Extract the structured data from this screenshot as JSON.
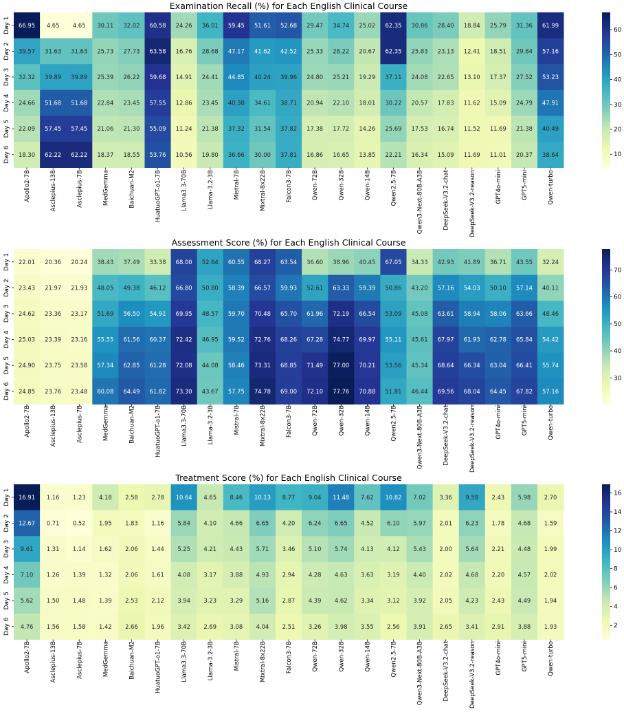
{
  "chart_data": [
    {
      "type": "heatmap",
      "title": "Examination Recall (%) for Each English Clinical Course",
      "colormap": "YlGnBu",
      "y_categories": [
        "Day 1",
        "Day 2",
        "Day 3",
        "Day 4",
        "Day 5",
        "Day 6"
      ],
      "x_categories": [
        "Apollo2-7B",
        "Asclepius-13B",
        "Asclepius-7B",
        "MedGemma",
        "Baichuan-M2",
        "HuatuoGPT-o1-7B",
        "Llama3.3-70B",
        "Llama-3.2-3B",
        "Mistral-7B",
        "Mixtral-8x22B",
        "Falcon3-7B",
        "Qwen-72B",
        "Qwen-32B",
        "Qwen-14B",
        "Qwen2.5-7B",
        "Qwen3-Next-80B-A3B",
        "DeepSeek-V3.2-chat",
        "DeepSeek-V3.2-reason",
        "GPT4o-mini",
        "GPT5-mini",
        "Qwen-turbo"
      ],
      "values": [
        [
          "66.95",
          "4.65",
          "4.65",
          "30.11",
          "32.02",
          "60.58",
          "24.26",
          "36.01",
          "59.45",
          "51.61",
          "52.68",
          "29.47",
          "34.74",
          "25.02",
          "62.35",
          "30.86",
          "28.40",
          "18.84",
          "25.79",
          "31.36",
          "61.99"
        ],
        [
          "39.57",
          "31.63",
          "31.63",
          "25.73",
          "27.73",
          "63.58",
          "16.76",
          "28.68",
          "47.17",
          "41.62",
          "42.52",
          "25.33",
          "28.22",
          "20.67",
          "62.35",
          "25.83",
          "23.13",
          "12.41",
          "18.51",
          "29.84",
          "57.16"
        ],
        [
          "32.32",
          "39.89",
          "39.89",
          "25.39",
          "26.22",
          "59.68",
          "14.91",
          "24.41",
          "44.85",
          "40.24",
          "39.96",
          "24.80",
          "25.21",
          "19.29",
          "37.11",
          "24.08",
          "22.65",
          "13.10",
          "17.37",
          "27.52",
          "53.23"
        ],
        [
          "24.66",
          "51.68",
          "51.68",
          "22.84",
          "23.45",
          "57.55",
          "12.86",
          "23.45",
          "40.38",
          "34.61",
          "38.71",
          "20.94",
          "22.10",
          "18.01",
          "30.22",
          "20.57",
          "17.83",
          "11.62",
          "15.09",
          "24.79",
          "47.91"
        ],
        [
          "22.09",
          "57.45",
          "57.45",
          "21.06",
          "21.30",
          "55.09",
          "11.24",
          "21.38",
          "37.32",
          "31.54",
          "37.82",
          "17.38",
          "17.72",
          "14.26",
          "25.69",
          "17.53",
          "16.74",
          "11.52",
          "11.69",
          "21.38",
          "40.49"
        ],
        [
          "18.30",
          "62.22",
          "62.22",
          "18.37",
          "18.55",
          "53.76",
          "10.56",
          "19.80",
          "36.66",
          "30.00",
          "37.81",
          "16.86",
          "16.65",
          "13.85",
          "22.21",
          "16.34",
          "15.09",
          "11.69",
          "11.01",
          "20.37",
          "38.64"
        ]
      ],
      "vmin": 4.65,
      "vmax": 66.95,
      "colorbar_ticks": [
        "10",
        "20",
        "30",
        "40",
        "50",
        "60"
      ]
    },
    {
      "type": "heatmap",
      "title": "Assessment Score (%) for Each English Clinical Course",
      "colormap": "YlGnBu",
      "y_categories": [
        "Day 1",
        "Day 2",
        "Day 3",
        "Day 4",
        "Day 5",
        "Day 6"
      ],
      "x_categories": [
        "Apollo2-7B",
        "Asclepius-13B",
        "Asclepius-7B",
        "MedGemma",
        "Baichuan-M2",
        "HuatuoGPT-o1-7B",
        "Llama3.3-70B",
        "Llama-3.2-3B",
        "Mistral-7B",
        "Mixtral-8x22B",
        "Falcon3-7B",
        "Qwen-72B",
        "Qwen-32B",
        "Qwen-14B",
        "Qwen2.5-7B",
        "Qwen3-Next-80B-A3B",
        "DeepSeek-V3.2-chat",
        "DeepSeek-V3.2-reason",
        "GPT4o-mini",
        "GPT5-mini",
        "Qwen-turbo"
      ],
      "values": [
        [
          "22.01",
          "20.36",
          "20.24",
          "38.43",
          "37.49",
          "33.38",
          "68.00",
          "52.64",
          "60.55",
          "68.27",
          "63.54",
          "36.60",
          "38.96",
          "40.45",
          "67.05",
          "34.33",
          "42.93",
          "41.89",
          "36.71",
          "43.55",
          "32.24"
        ],
        [
          "23.43",
          "21.97",
          "21.93",
          "48.05",
          "49.38",
          "46.12",
          "66.80",
          "50.80",
          "58.39",
          "66.57",
          "59.93",
          "52.61",
          "63.33",
          "59.39",
          "50.86",
          "43.20",
          "57.16",
          "54.03",
          "50.10",
          "57.14",
          "40.11"
        ],
        [
          "24.62",
          "23.36",
          "23.17",
          "51.69",
          "56.50",
          "54.91",
          "69.95",
          "48.57",
          "59.70",
          "70.48",
          "65.70",
          "61.96",
          "72.19",
          "66.54",
          "53.09",
          "45.08",
          "63.61",
          "58.94",
          "58.06",
          "63.66",
          "48.46"
        ],
        [
          "25.03",
          "23.39",
          "23.16",
          "55.55",
          "61.56",
          "60.37",
          "72.42",
          "46.95",
          "59.52",
          "72.76",
          "68.26",
          "67.28",
          "74.77",
          "69.97",
          "55.11",
          "45.61",
          "67.97",
          "61.93",
          "62.78",
          "65.84",
          "54.42"
        ],
        [
          "24.90",
          "23.75",
          "23.58",
          "57.34",
          "62.85",
          "61.28",
          "72.08",
          "44.08",
          "58.46",
          "73.31",
          "68.85",
          "71.49",
          "77.00",
          "70.21",
          "53.56",
          "45.34",
          "68.64",
          "66.34",
          "63.04",
          "66.41",
          "55.74"
        ],
        [
          "24.85",
          "23.76",
          "23.48",
          "60.08",
          "64.49",
          "61.82",
          "73.30",
          "43.67",
          "57.75",
          "74.78",
          "69.00",
          "72.10",
          "77.76",
          "70.88",
          "51.81",
          "46.44",
          "69.56",
          "68.04",
          "64.45",
          "67.82",
          "57.16"
        ]
      ],
      "vmin": 20.24,
      "vmax": 77.76,
      "colorbar_ticks": [
        "30",
        "40",
        "50",
        "60",
        "70"
      ]
    },
    {
      "type": "heatmap",
      "title": "Treatment Score (%) for Each English Clinical Course",
      "colormap": "YlGnBu",
      "y_categories": [
        "Day 1",
        "Day 2",
        "Day 3",
        "Day 4",
        "Day 5",
        "Day 6"
      ],
      "x_categories": [
        "Apollo2-7B",
        "Asclepius-13B",
        "Asclepius-7B",
        "MedGemma",
        "Baichuan-M2",
        "HuatuoGPT-o1-7B",
        "Llama3.3-70B",
        "Llama-3.2-3B",
        "Mistral-7B",
        "Mixtral-8x22B",
        "Falcon3-7B",
        "Qwen-72B",
        "Qwen-32B",
        "Qwen-14B",
        "Qwen2.5-7B",
        "Qwen3-Next-80B-A3B",
        "DeepSeek-V3.2-chat",
        "DeepSeek-V3.2-reason",
        "GPT4o-mini",
        "GPT5-mini",
        "Qwen-turbo"
      ],
      "values": [
        [
          "16.91",
          "1.16",
          "1.23",
          "4.18",
          "2.58",
          "2.78",
          "10.64",
          "4.65",
          "8.46",
          "10.13",
          "8.77",
          "9.04",
          "11.48",
          "7.62",
          "10.82",
          "7.02",
          "3.36",
          "9.58",
          "2.43",
          "5.98",
          "2.70"
        ],
        [
          "12.67",
          "0.71",
          "0.52",
          "1.95",
          "1.83",
          "1.16",
          "5.84",
          "4.10",
          "4.66",
          "6.65",
          "4.20",
          "6.24",
          "6.65",
          "4.52",
          "6.10",
          "5.97",
          "2.01",
          "6.23",
          "1.78",
          "4.68",
          "1.59"
        ],
        [
          "9.61",
          "1.31",
          "1.14",
          "1.62",
          "2.06",
          "1.44",
          "5.25",
          "4.21",
          "4.43",
          "5.71",
          "3.46",
          "5.10",
          "5.74",
          "4.13",
          "4.12",
          "5.43",
          "2.00",
          "5.64",
          "2.21",
          "4.48",
          "1.99"
        ],
        [
          "7.10",
          "1.26",
          "1.39",
          "1.32",
          "2.06",
          "1.61",
          "4.08",
          "3.17",
          "3.88",
          "4.93",
          "2.94",
          "4.28",
          "4.63",
          "3.63",
          "3.19",
          "4.40",
          "2.02",
          "4.68",
          "2.20",
          "4.57",
          "2.02"
        ],
        [
          "5.62",
          "1.50",
          "1.48",
          "1.39",
          "2.53",
          "2.12",
          "3.94",
          "3.23",
          "3.29",
          "5.16",
          "2.87",
          "4.39",
          "4.62",
          "3.34",
          "3.12",
          "3.92",
          "2.05",
          "4.23",
          "2.43",
          "4.49",
          "1.94"
        ],
        [
          "4.76",
          "1.56",
          "1.58",
          "1.42",
          "2.66",
          "1.96",
          "3.42",
          "2.69",
          "3.08",
          "4.04",
          "2.51",
          "3.26",
          "3.98",
          "3.55",
          "2.56",
          "3.91",
          "2.65",
          "3.41",
          "2.91",
          "3.88",
          "1.93"
        ]
      ],
      "vmin": 0.52,
      "vmax": 16.91,
      "colorbar_ticks": [
        "2",
        "4",
        "6",
        "8",
        "10",
        "12",
        "14",
        "16"
      ]
    }
  ]
}
